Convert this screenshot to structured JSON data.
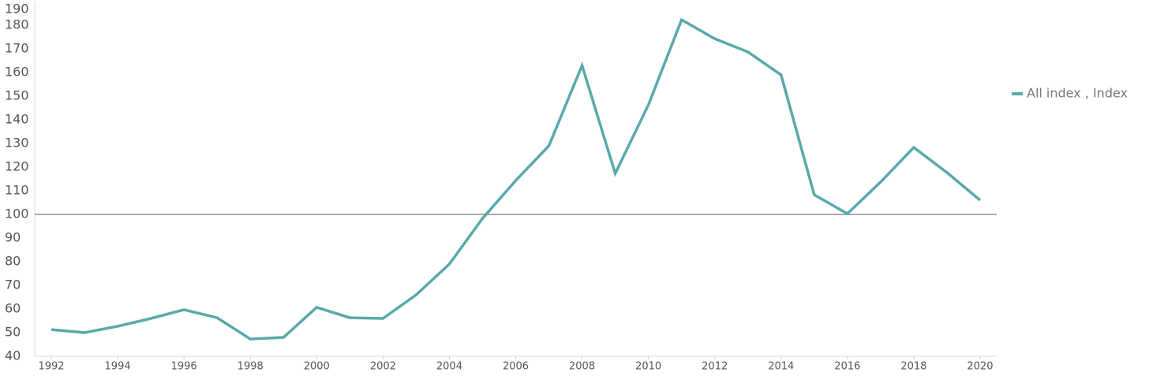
{
  "chart_data": {
    "type": "line",
    "x": [
      1992,
      1993,
      1994,
      1995,
      1996,
      1997,
      1998,
      1999,
      2000,
      2001,
      2002,
      2003,
      2004,
      2005,
      2006,
      2007,
      2008,
      2009,
      2010,
      2011,
      2012,
      2013,
      2014,
      2015,
      2016,
      2017,
      2018,
      2019,
      2020
    ],
    "series": [
      {
        "name": "All index , Index",
        "color": "#5aa9ab",
        "values": [
          51.3,
          50,
          52.7,
          56,
          59.7,
          56.3,
          47.3,
          48,
          60.7,
          56.3,
          56,
          66,
          79,
          98.3,
          114.3,
          129,
          163,
          117.3,
          146.3,
          182.3,
          174.3,
          168.7,
          159,
          108.3,
          100.3,
          113.7,
          128.3,
          117.7,
          106
        ]
      }
    ],
    "xlim": [
      1991.5,
      2020.5
    ],
    "xticks": [
      1992,
      1994,
      1996,
      1998,
      2000,
      2002,
      2004,
      2006,
      2008,
      2010,
      2012,
      2014,
      2016,
      2018,
      2020
    ],
    "ylim": [
      40,
      190
    ],
    "yticks": [
      40,
      50,
      60,
      70,
      80,
      90,
      100,
      110,
      120,
      130,
      140,
      150,
      160,
      170,
      180,
      190
    ],
    "hline": 100,
    "legend": "right"
  }
}
